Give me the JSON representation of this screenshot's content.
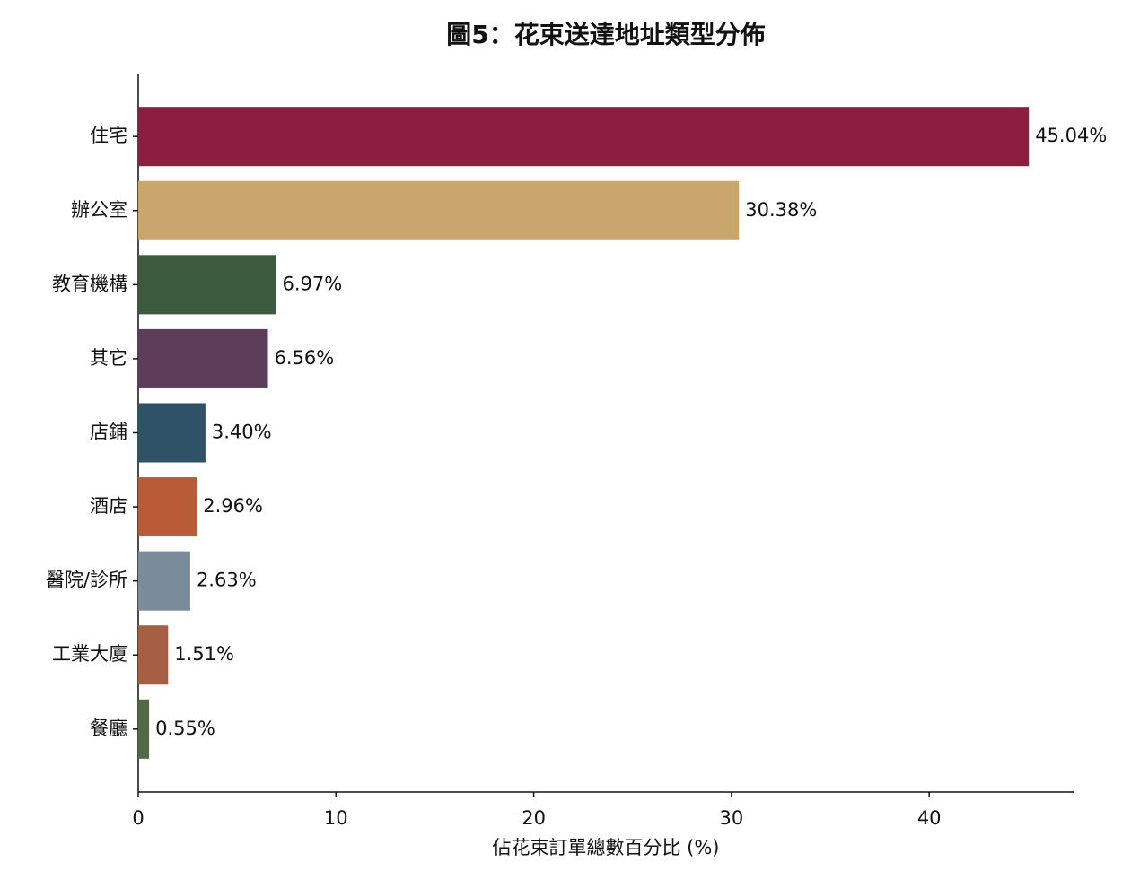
{
  "chart_data": {
    "type": "barh",
    "title": "圖5：花束送達地址類型分佈",
    "x_label": "佔花束訂單總數百分比 (%)",
    "categories": [
      "住宅",
      "辦公室",
      "教育機構",
      "其它",
      "店鋪",
      "酒店",
      "醫院/診所",
      "工業大廈",
      "餐廳"
    ],
    "series": [
      {
        "values": [
          45.04,
          30.38,
          6.97,
          6.56,
          3.4,
          2.96,
          2.63,
          1.51,
          0.55
        ],
        "value_labels": [
          "45.04%",
          "30.38%",
          "6.97%",
          "6.56%",
          "3.40%",
          "2.96%",
          "2.63%",
          "1.51%",
          "0.55%"
        ],
        "colors": [
          "#8b1e3f",
          "#c9a66b",
          "#3c5a3e",
          "#5c3d5a",
          "#2f5266",
          "#b85c38",
          "#7a8c99",
          "#a65e44",
          "#4f6b46"
        ]
      }
    ],
    "xlim": [
      0,
      47.3
    ],
    "xticks": [
      0,
      10,
      20,
      30,
      40
    ],
    "grid": false
  }
}
